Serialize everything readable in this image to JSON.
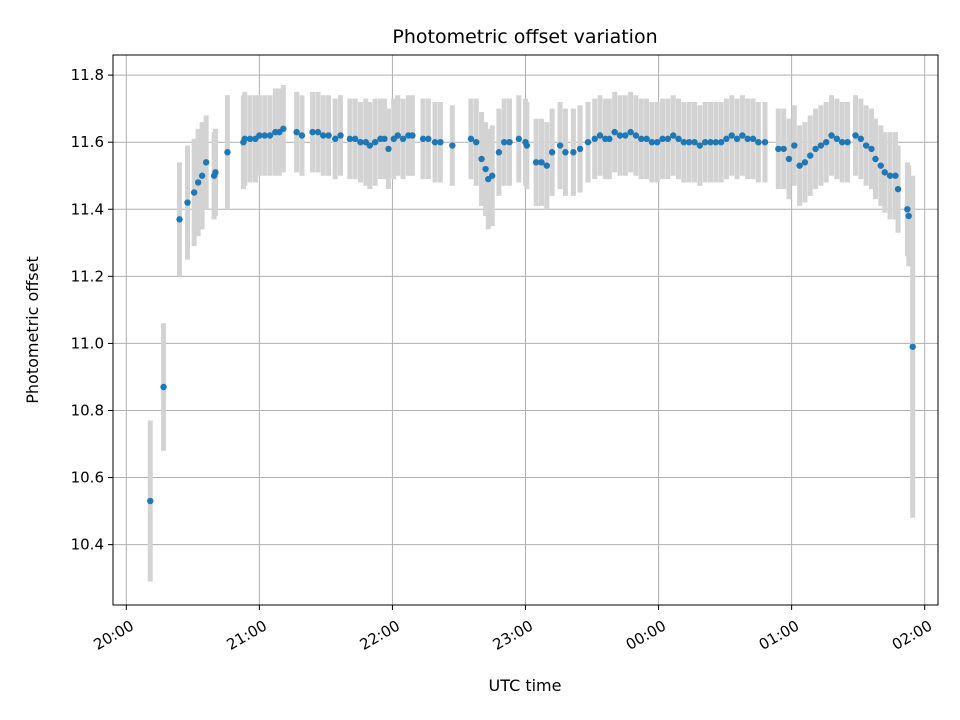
{
  "chart_data": {
    "type": "scatter",
    "title": "Photometric offset variation",
    "xlabel": "UTC time",
    "ylabel": "Photometric offset",
    "x_unit": "UTC hours (from 20:00)",
    "xlim": [
      19.9,
      26.1
    ],
    "ylim": [
      10.22,
      11.86
    ],
    "x_ticks": [
      20,
      21,
      22,
      23,
      24,
      25,
      26
    ],
    "x_tick_labels": [
      "20:00",
      "21:00",
      "22:00",
      "23:00",
      "00:00",
      "01:00",
      "02:00"
    ],
    "y_ticks": [
      10.4,
      10.6,
      10.8,
      11.0,
      11.2,
      11.4,
      11.6,
      11.8
    ],
    "y_tick_labels": [
      "10.4",
      "10.6",
      "10.8",
      "11.0",
      "11.2",
      "11.4",
      "11.6",
      "11.8"
    ],
    "grid": true,
    "marker_color": "#1f77b4",
    "errorbar_color": "#d3d3d3",
    "points": [
      [
        20.18,
        10.53,
        0.24
      ],
      [
        20.28,
        10.87,
        0.19
      ],
      [
        20.4,
        11.37,
        0.17
      ],
      [
        20.46,
        11.42,
        0.17
      ],
      [
        20.51,
        11.45,
        0.16
      ],
      [
        20.54,
        11.48,
        0.16
      ],
      [
        20.57,
        11.5,
        0.16
      ],
      [
        20.6,
        11.54,
        0.14
      ],
      [
        20.66,
        11.5,
        0.13
      ],
      [
        20.67,
        11.51,
        0.13
      ],
      [
        20.76,
        11.57,
        0.17
      ],
      [
        20.88,
        11.6,
        0.14
      ],
      [
        20.89,
        11.61,
        0.14
      ],
      [
        20.93,
        11.61,
        0.13
      ],
      [
        20.97,
        11.61,
        0.13
      ],
      [
        21.0,
        11.62,
        0.12
      ],
      [
        21.04,
        11.62,
        0.12
      ],
      [
        21.08,
        11.62,
        0.12
      ],
      [
        21.12,
        11.63,
        0.13
      ],
      [
        21.15,
        11.63,
        0.13
      ],
      [
        21.18,
        11.64,
        0.13
      ],
      [
        21.28,
        11.63,
        0.12
      ],
      [
        21.32,
        11.62,
        0.12
      ],
      [
        21.4,
        11.63,
        0.12
      ],
      [
        21.44,
        11.63,
        0.12
      ],
      [
        21.48,
        11.62,
        0.12
      ],
      [
        21.52,
        11.62,
        0.12
      ],
      [
        21.57,
        11.61,
        0.12
      ],
      [
        21.61,
        11.62,
        0.12
      ],
      [
        21.68,
        11.61,
        0.12
      ],
      [
        21.72,
        11.61,
        0.12
      ],
      [
        21.76,
        11.6,
        0.12
      ],
      [
        21.8,
        11.6,
        0.13
      ],
      [
        21.83,
        11.59,
        0.13
      ],
      [
        21.87,
        11.6,
        0.13
      ],
      [
        21.91,
        11.61,
        0.12
      ],
      [
        21.94,
        11.61,
        0.12
      ],
      [
        21.97,
        11.58,
        0.12
      ],
      [
        22.01,
        11.61,
        0.12
      ],
      [
        22.04,
        11.62,
        0.12
      ],
      [
        22.08,
        11.61,
        0.12
      ],
      [
        22.12,
        11.62,
        0.12
      ],
      [
        22.15,
        11.62,
        0.12
      ],
      [
        22.23,
        11.61,
        0.12
      ],
      [
        22.27,
        11.61,
        0.12
      ],
      [
        22.32,
        11.6,
        0.12
      ],
      [
        22.36,
        11.6,
        0.12
      ],
      [
        22.45,
        11.59,
        0.12
      ],
      [
        22.59,
        11.61,
        0.12
      ],
      [
        22.63,
        11.6,
        0.13
      ],
      [
        22.67,
        11.55,
        0.14
      ],
      [
        22.7,
        11.52,
        0.14
      ],
      [
        22.72,
        11.49,
        0.15
      ],
      [
        22.75,
        11.5,
        0.15
      ],
      [
        22.8,
        11.57,
        0.13
      ],
      [
        22.84,
        11.6,
        0.13
      ],
      [
        22.88,
        11.6,
        0.13
      ],
      [
        22.95,
        11.61,
        0.13
      ],
      [
        23.0,
        11.6,
        0.13
      ],
      [
        23.01,
        11.59,
        0.13
      ],
      [
        23.08,
        11.54,
        0.13
      ],
      [
        23.12,
        11.54,
        0.13
      ],
      [
        23.16,
        11.53,
        0.13
      ],
      [
        23.2,
        11.57,
        0.13
      ],
      [
        23.26,
        11.59,
        0.13
      ],
      [
        23.3,
        11.57,
        0.13
      ],
      [
        23.36,
        11.57,
        0.13
      ],
      [
        23.41,
        11.58,
        0.13
      ],
      [
        23.47,
        11.6,
        0.12
      ],
      [
        23.52,
        11.61,
        0.12
      ],
      [
        23.56,
        11.62,
        0.12
      ],
      [
        23.6,
        11.61,
        0.12
      ],
      [
        23.63,
        11.61,
        0.12
      ],
      [
        23.67,
        11.63,
        0.12
      ],
      [
        23.71,
        11.62,
        0.12
      ],
      [
        23.75,
        11.62,
        0.12
      ],
      [
        23.79,
        11.63,
        0.12
      ],
      [
        23.83,
        11.62,
        0.12
      ],
      [
        23.87,
        11.61,
        0.12
      ],
      [
        23.91,
        11.61,
        0.12
      ],
      [
        23.95,
        11.6,
        0.12
      ],
      [
        23.99,
        11.6,
        0.12
      ],
      [
        24.03,
        11.61,
        0.12
      ],
      [
        24.07,
        11.61,
        0.12
      ],
      [
        24.11,
        11.62,
        0.12
      ],
      [
        24.15,
        11.61,
        0.12
      ],
      [
        24.19,
        11.6,
        0.12
      ],
      [
        24.23,
        11.6,
        0.12
      ],
      [
        24.27,
        11.6,
        0.12
      ],
      [
        24.31,
        11.59,
        0.12
      ],
      [
        24.35,
        11.6,
        0.12
      ],
      [
        24.39,
        11.6,
        0.12
      ],
      [
        24.43,
        11.6,
        0.12
      ],
      [
        24.47,
        11.6,
        0.12
      ],
      [
        24.51,
        11.61,
        0.12
      ],
      [
        24.55,
        11.62,
        0.12
      ],
      [
        24.59,
        11.61,
        0.12
      ],
      [
        24.63,
        11.62,
        0.12
      ],
      [
        24.67,
        11.61,
        0.12
      ],
      [
        24.71,
        11.61,
        0.12
      ],
      [
        24.75,
        11.6,
        0.12
      ],
      [
        24.8,
        11.6,
        0.12
      ],
      [
        24.9,
        11.58,
        0.12
      ],
      [
        24.94,
        11.58,
        0.12
      ],
      [
        24.98,
        11.55,
        0.12
      ],
      [
        25.02,
        11.59,
        0.12
      ],
      [
        25.06,
        11.53,
        0.12
      ],
      [
        25.1,
        11.54,
        0.12
      ],
      [
        25.14,
        11.56,
        0.12
      ],
      [
        25.18,
        11.58,
        0.12
      ],
      [
        25.22,
        11.59,
        0.12
      ],
      [
        25.26,
        11.6,
        0.12
      ],
      [
        25.3,
        11.62,
        0.12
      ],
      [
        25.34,
        11.61,
        0.12
      ],
      [
        25.38,
        11.6,
        0.12
      ],
      [
        25.42,
        11.6,
        0.12
      ],
      [
        25.48,
        11.62,
        0.12
      ],
      [
        25.52,
        11.61,
        0.12
      ],
      [
        25.56,
        11.59,
        0.12
      ],
      [
        25.6,
        11.58,
        0.12
      ],
      [
        25.63,
        11.55,
        0.12
      ],
      [
        25.67,
        11.53,
        0.12
      ],
      [
        25.7,
        11.51,
        0.12
      ],
      [
        25.74,
        11.5,
        0.13
      ],
      [
        25.78,
        11.5,
        0.13
      ],
      [
        25.8,
        11.46,
        0.13
      ],
      [
        25.87,
        11.4,
        0.14
      ],
      [
        25.88,
        11.38,
        0.15
      ],
      [
        25.91,
        10.99,
        0.51
      ]
    ]
  }
}
